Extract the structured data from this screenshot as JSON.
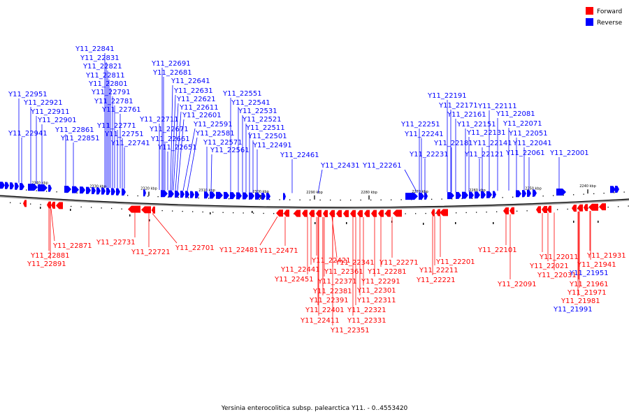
{
  "caption": "Yersinia enterocolitica subsp. palearctica Y11. - 0..4553420",
  "legend": [
    {
      "label": "Forward",
      "color": "#ff0000"
    },
    {
      "label": "Reverse",
      "color": "#0000ff"
    }
  ],
  "colors": {
    "forward": "#ff0000",
    "reverse": "#0000ff",
    "axis": "#000000"
  },
  "scale_labels": [
    "2340 kbp",
    "2330 kbp",
    "2320 kbp",
    "2310 kbp",
    "2300 kbp",
    "2290 kbp",
    "2280 kbp",
    "2270 kbp",
    "2260 kbp",
    "2250 kbp",
    "2240 kbp"
  ],
  "reverse_labels": [
    "Y11_22841",
    "Y11_22831",
    "Y11_22821",
    "Y11_22811",
    "Y11_22801",
    "Y11_22791",
    "Y11_22781",
    "Y11_22771",
    "Y11_22761",
    "Y11_22751",
    "Y11_22741",
    "Y11_22951",
    "Y11_22921",
    "Y11_22911",
    "Y11_22901",
    "Y11_22941",
    "Y11_22861",
    "Y11_22851",
    "Y11_22691",
    "Y11_22681",
    "Y11_22641",
    "Y11_22631",
    "Y11_22621",
    "Y11_22611",
    "Y11_22601",
    "Y11_22591",
    "Y11_22581",
    "Y11_22571",
    "Y11_22561",
    "Y11_22711",
    "Y11_22671",
    "Y11_22661",
    "Y11_22651",
    "Y11_22551",
    "Y11_22541",
    "Y11_22531",
    "Y11_22521",
    "Y11_22511",
    "Y11_22501",
    "Y11_22491",
    "Y11_22461",
    "Y11_22431",
    "Y11_22261",
    "Y11_22191",
    "Y11_22171",
    "Y11_22161",
    "Y11_22151",
    "Y11_22131",
    "Y11_22111",
    "Y11_22081",
    "Y11_22071",
    "Y11_22051",
    "Y11_22251",
    "Y11_22241",
    "Y11_22231",
    "Y11_22181",
    "Y11_22121",
    "Y11_22141",
    "Y11_22041",
    "Y11_22061",
    "Y11_22001",
    "Y11_21951",
    "Y11_21991"
  ],
  "forward_labels": [
    "Y11_22871",
    "Y11_22881",
    "Y11_22891",
    "Y11_22731",
    "Y11_22721",
    "Y11_22701",
    "Y11_22481",
    "Y11_22471",
    "Y11_22421",
    "Y11_22441",
    "Y11_22451",
    "Y11_22341",
    "Y11_22361",
    "Y11_22371",
    "Y11_22381",
    "Y11_22391",
    "Y11_22401",
    "Y11_22411",
    "Y11_22351",
    "Y11_22331",
    "Y11_22321",
    "Y11_22311",
    "Y11_22301",
    "Y11_22291",
    "Y11_22281",
    "Y11_22271",
    "Y11_22201",
    "Y11_22211",
    "Y11_22221",
    "Y11_22101",
    "Y11_22091",
    "Y11_22011",
    "Y11_22021",
    "Y11_22031",
    "Y11_21931",
    "Y11_21941",
    "Y11_21961",
    "Y11_21971",
    "Y11_21981"
  ]
}
